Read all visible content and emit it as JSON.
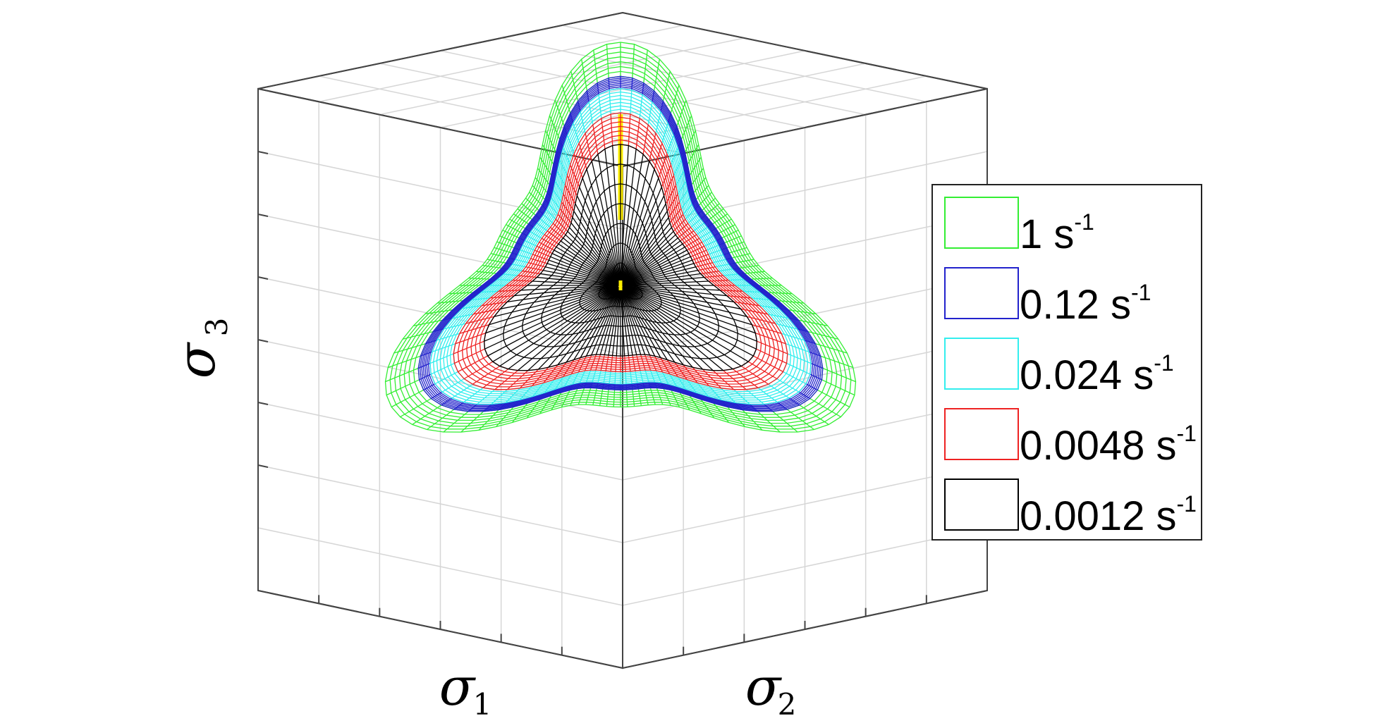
{
  "chart_data": {
    "type": "3d-surface",
    "view": "along hydrostatic axis (deviatoric plane)",
    "axis_labels": {
      "x": {
        "symbol": "σ",
        "sub": "1"
      },
      "y": {
        "symbol": "σ",
        "sub": "2"
      },
      "z": {
        "symbol": "σ",
        "sub": "3"
      }
    },
    "grid": true,
    "hydrostatic_axis_color": "#ffee00",
    "legend": {
      "position": "right",
      "entries": [
        {
          "label": "1 s",
          "exp": "-1",
          "color": "#33ee33"
        },
        {
          "label": "0.12 s",
          "exp": "-1",
          "color": "#2222cc"
        },
        {
          "label": "0.024 s",
          "exp": "-1",
          "color": "#33eeee"
        },
        {
          "label": "0.0048 s",
          "exp": "-1",
          "color": "#ee2222"
        },
        {
          "label": "0.0012 s",
          "exp": "-1",
          "color": "#000000"
        }
      ]
    },
    "series": [
      {
        "name": "1 s-1",
        "strain_rate": 1,
        "relative_size": 1.0
      },
      {
        "name": "0.12 s-1",
        "strain_rate": 0.12,
        "relative_size": 0.86
      },
      {
        "name": "0.024 s-1",
        "strain_rate": 0.024,
        "relative_size": 0.81
      },
      {
        "name": "0.0048 s-1",
        "strain_rate": 0.0048,
        "relative_size": 0.71
      },
      {
        "name": "0.0012 s-1",
        "strain_rate": 0.0012,
        "relative_size": 0.58
      }
    ]
  }
}
